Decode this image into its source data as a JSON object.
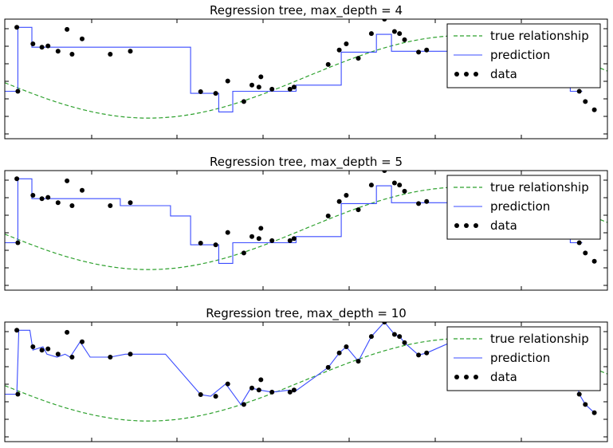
{
  "figure": {
    "legend_labels": [
      "true relationship",
      "prediction",
      "data"
    ],
    "colors": {
      "true": "#2ca02c",
      "prediction": "#3b4cff",
      "data": "#000000"
    }
  },
  "chart_data": [
    {
      "type": "line",
      "title": "Regression tree, max_depth = 4",
      "xlim": [
        -3,
        3
      ],
      "ylim": [
        -1.5,
        1.4
      ],
      "grid": false,
      "legend_placement": "top-right",
      "series": [
        {
          "name": "true relationship",
          "function": "sin(x)",
          "style": "dashed"
        },
        {
          "name": "prediction",
          "style": "step",
          "x": [
            -3.0,
            -2.87,
            -2.87,
            -2.73,
            -2.73,
            -1.15,
            -1.15,
            -0.87,
            -0.87,
            -0.73,
            -0.73,
            -0.1,
            -0.1,
            0.35,
            0.35,
            0.7,
            0.7,
            0.85,
            0.85,
            1.5,
            1.5,
            1.85,
            1.85,
            2.45,
            2.45,
            2.63,
            2.63,
            2.75
          ],
          "y": [
            -0.35,
            -0.35,
            1.2,
            1.2,
            0.72,
            0.72,
            -0.4,
            -0.4,
            -0.85,
            -0.85,
            -0.35,
            -0.35,
            -0.2,
            -0.2,
            0.6,
            0.6,
            1.03,
            1.03,
            0.62,
            0.62,
            0.5,
            0.5,
            0.3,
            0.3,
            -0.2,
            -0.2,
            -0.35,
            -0.35
          ]
        },
        {
          "name": "data",
          "style": "scatter",
          "x": [
            -2.88,
            -2.87,
            -2.72,
            -2.63,
            -2.57,
            -2.47,
            -2.38,
            -2.33,
            -2.23,
            -1.95,
            -1.75,
            -1.05,
            -0.9,
            -0.78,
            -0.62,
            -0.54,
            -0.47,
            -0.45,
            -0.34,
            -0.16,
            -0.12,
            0.22,
            0.33,
            0.4,
            0.52,
            0.65,
            0.78,
            0.88,
            0.93,
            0.98,
            1.12,
            1.2,
            1.62,
            1.88,
            2.02,
            2.57,
            2.65,
            2.72,
            2.78,
            2.87
          ],
          "y": [
            1.2,
            -0.35,
            0.8,
            0.72,
            0.75,
            0.62,
            1.15,
            0.55,
            0.92,
            0.55,
            0.62,
            -0.36,
            -0.4,
            -0.1,
            -0.6,
            -0.2,
            -0.25,
            0.0,
            -0.3,
            -0.3,
            -0.25,
            0.3,
            0.65,
            0.8,
            0.45,
            1.05,
            1.4,
            1.1,
            1.05,
            0.9,
            0.6,
            0.65,
            1.1,
            0.75,
            0.4,
            0.5,
            0.4,
            -0.35,
            -0.6,
            -0.8
          ]
        }
      ]
    },
    {
      "type": "line",
      "title": "Regression tree, max_depth = 5",
      "xlim": [
        -3,
        3
      ],
      "ylim": [
        -1.5,
        1.4
      ],
      "grid": false,
      "legend_placement": "top-right",
      "series": [
        {
          "name": "true relationship",
          "function": "sin(x)",
          "style": "dashed"
        },
        {
          "name": "prediction",
          "style": "step",
          "x": [
            -3.0,
            -2.87,
            -2.87,
            -2.73,
            -2.73,
            -1.85,
            -1.85,
            -1.35,
            -1.35,
            -1.15,
            -1.15,
            -0.87,
            -0.87,
            -0.73,
            -0.73,
            -0.1,
            -0.1,
            0.35,
            0.35,
            0.7,
            0.7,
            0.85,
            0.85,
            1.5,
            1.5,
            1.85,
            1.85,
            2.45,
            2.45,
            2.63,
            2.63,
            2.75
          ],
          "y": [
            -0.35,
            -0.35,
            1.2,
            1.2,
            0.72,
            0.72,
            0.55,
            0.55,
            0.3,
            0.3,
            -0.4,
            -0.4,
            -0.85,
            -0.85,
            -0.35,
            -0.35,
            -0.2,
            -0.2,
            0.6,
            0.6,
            1.03,
            1.03,
            0.62,
            0.62,
            0.5,
            0.5,
            0.3,
            0.3,
            -0.2,
            -0.2,
            -0.35,
            -0.35
          ]
        },
        {
          "name": "data",
          "style": "scatter",
          "x": [
            -2.88,
            -2.87,
            -2.72,
            -2.63,
            -2.57,
            -2.47,
            -2.38,
            -2.33,
            -2.23,
            -1.95,
            -1.75,
            -1.05,
            -0.9,
            -0.78,
            -0.62,
            -0.54,
            -0.47,
            -0.45,
            -0.34,
            -0.16,
            -0.12,
            0.22,
            0.33,
            0.4,
            0.52,
            0.65,
            0.78,
            0.88,
            0.93,
            0.98,
            1.12,
            1.2,
            1.62,
            1.88,
            2.02,
            2.57,
            2.65,
            2.72,
            2.78,
            2.87
          ],
          "y": [
            1.2,
            -0.35,
            0.8,
            0.72,
            0.75,
            0.62,
            1.15,
            0.55,
            0.92,
            0.55,
            0.62,
            -0.36,
            -0.4,
            -0.1,
            -0.6,
            -0.2,
            -0.25,
            0.0,
            -0.3,
            -0.3,
            -0.25,
            0.3,
            0.65,
            0.8,
            0.45,
            1.05,
            1.4,
            1.1,
            1.05,
            0.9,
            0.6,
            0.65,
            1.1,
            0.75,
            0.4,
            0.5,
            0.4,
            -0.35,
            -0.6,
            -0.8
          ]
        }
      ]
    },
    {
      "type": "line",
      "title": "Regression tree, max_depth = 10",
      "xlim": [
        -3,
        3
      ],
      "ylim": [
        -1.5,
        1.4
      ],
      "grid": false,
      "legend_placement": "top-right",
      "series": [
        {
          "name": "true relationship",
          "function": "sin(x)",
          "style": "dashed"
        },
        {
          "name": "prediction",
          "style": "interpolated",
          "x": [
            -3.0,
            -2.88,
            -2.86,
            -2.75,
            -2.72,
            -2.62,
            -2.58,
            -2.48,
            -2.4,
            -2.35,
            -2.25,
            -2.15,
            -2.05,
            -1.95,
            -1.8,
            -1.6,
            -1.4,
            -1.05,
            -0.95,
            -0.8,
            -0.65,
            -0.55,
            -0.46,
            -0.34,
            -0.16,
            -0.12,
            0.22,
            0.33,
            0.4,
            0.52,
            0.65,
            0.78,
            0.88,
            0.93,
            0.98,
            1.12,
            1.2,
            1.62,
            1.88,
            2.02,
            2.15,
            2.3,
            2.45,
            2.57,
            2.65,
            2.72,
            2.78,
            2.87
          ],
          "y": [
            -0.35,
            -0.35,
            1.2,
            1.2,
            0.72,
            0.8,
            0.62,
            0.55,
            0.62,
            0.55,
            0.92,
            0.55,
            0.55,
            0.55,
            0.62,
            0.62,
            0.62,
            -0.36,
            -0.4,
            -0.1,
            -0.6,
            -0.2,
            -0.25,
            -0.3,
            -0.25,
            -0.3,
            0.3,
            0.65,
            0.8,
            0.45,
            1.05,
            1.4,
            1.1,
            1.05,
            0.9,
            0.6,
            0.65,
            1.1,
            0.75,
            0.4,
            0.5,
            0.5,
            0.4,
            0.5,
            0.4,
            -0.35,
            -0.6,
            -0.8
          ]
        },
        {
          "name": "data",
          "style": "scatter",
          "x": [
            -2.88,
            -2.87,
            -2.72,
            -2.63,
            -2.57,
            -2.47,
            -2.38,
            -2.33,
            -2.23,
            -1.95,
            -1.75,
            -1.05,
            -0.9,
            -0.78,
            -0.62,
            -0.54,
            -0.47,
            -0.45,
            -0.34,
            -0.16,
            -0.12,
            0.22,
            0.33,
            0.4,
            0.52,
            0.65,
            0.78,
            0.88,
            0.93,
            0.98,
            1.12,
            1.2,
            1.62,
            1.88,
            2.02,
            2.57,
            2.65,
            2.72,
            2.78,
            2.87
          ],
          "y": [
            1.2,
            -0.35,
            0.8,
            0.72,
            0.75,
            0.62,
            1.15,
            0.55,
            0.92,
            0.55,
            0.62,
            -0.36,
            -0.4,
            -0.1,
            -0.6,
            -0.2,
            -0.25,
            0.0,
            -0.3,
            -0.3,
            -0.25,
            0.3,
            0.65,
            0.8,
            0.45,
            1.05,
            1.4,
            1.1,
            1.05,
            0.9,
            0.6,
            0.65,
            1.1,
            0.75,
            0.4,
            0.5,
            0.4,
            -0.35,
            -0.6,
            -0.8
          ]
        }
      ]
    }
  ]
}
